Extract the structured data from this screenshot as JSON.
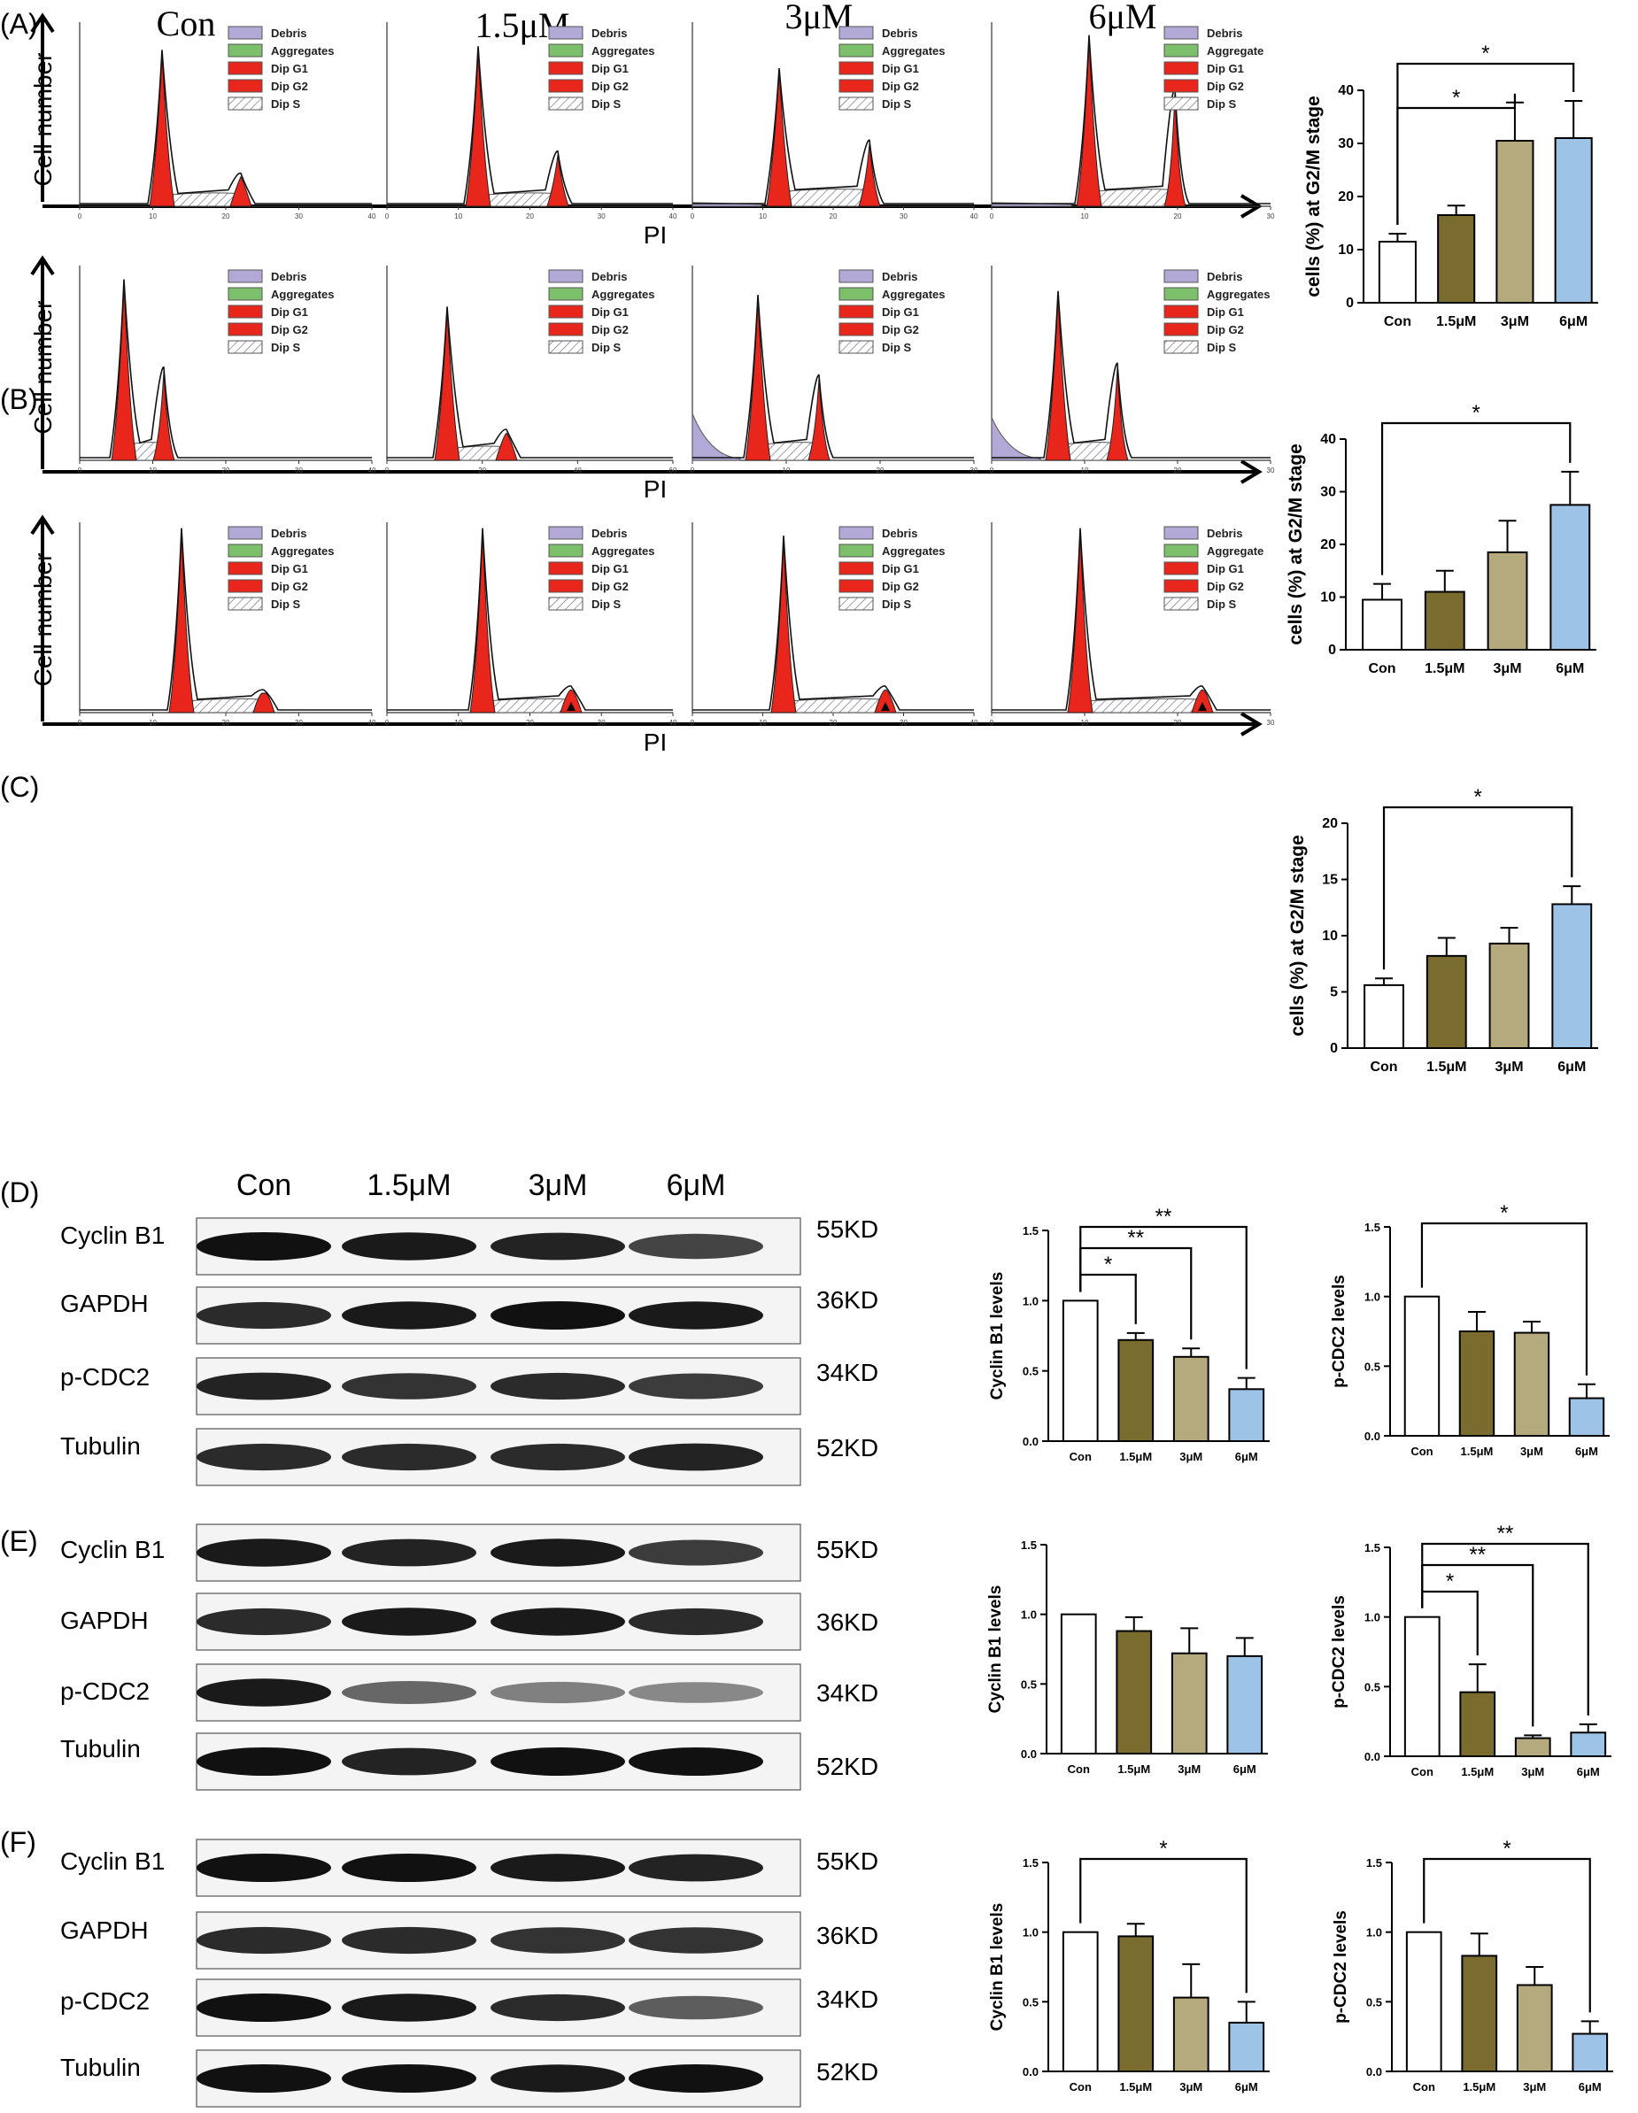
{
  "panels": {
    "A": {
      "label": "(A)"
    },
    "B": {
      "label": "(B)"
    },
    "C": {
      "label": "(C)"
    },
    "D": {
      "label": "(D)"
    },
    "E": {
      "label": "(E)"
    },
    "F": {
      "label": "(F)"
    }
  },
  "flow": {
    "y_axis_label": "Cell number",
    "x_axis_label": "PI",
    "column_titles": [
      "Con",
      "1.5μM",
      "3μM",
      "6μM"
    ],
    "legend": [
      "Debris",
      "Aggregates",
      "Dip G1",
      "Dip G2",
      "Dip S"
    ],
    "legend_cut": "Aggregate",
    "ticks_40": [
      "0",
      "10",
      "20",
      "30",
      "40"
    ],
    "ticks_60": [
      "0",
      "20",
      "40",
      "60"
    ],
    "ticks_30": [
      "0",
      "10",
      "20",
      "30"
    ],
    "colors": {
      "debris": "#b3a9d6",
      "aggregates": "#7dc06b",
      "g1": "#e8261c",
      "g2": "#e8261c",
      "s": "#ffffff"
    }
  },
  "blots": {
    "lanes": [
      "Con",
      "1.5μM",
      "3μM",
      "6μM"
    ],
    "rows": [
      {
        "protein": "Cyclin B1",
        "size": "55KD"
      },
      {
        "protein": "GAPDH",
        "size": "36KD"
      },
      {
        "protein": "p-CDC2",
        "size": "34KD"
      },
      {
        "protein": "Tubulin",
        "size": "52KD"
      }
    ]
  },
  "chart_data": [
    {
      "id": "A",
      "type": "bar",
      "ylabel": "cells (%) at G2/M stage",
      "categories": [
        "Con",
        "1.5μM",
        "3μM",
        "6μM"
      ],
      "values": [
        11.5,
        16.5,
        30.5,
        31
      ],
      "errors": [
        1.5,
        1.8,
        7.2,
        7
      ],
      "ylim": [
        0,
        40
      ],
      "yticks": [
        "0",
        "10",
        "20",
        "30",
        "40"
      ],
      "significance": [
        {
          "from": 0,
          "to": 2,
          "label": "*"
        },
        {
          "from": 0,
          "to": 3,
          "label": "*"
        }
      ]
    },
    {
      "id": "B",
      "type": "bar",
      "ylabel": "cells (%) at G2/M stage",
      "categories": [
        "Con",
        "1.5μM",
        "3μM",
        "6μM"
      ],
      "values": [
        9.5,
        11,
        18.5,
        27.5
      ],
      "errors": [
        3,
        4,
        6,
        6.3
      ],
      "ylim": [
        0,
        40
      ],
      "yticks": [
        "0",
        "10",
        "20",
        "30",
        "40"
      ],
      "significance": [
        {
          "from": 0,
          "to": 3,
          "label": "*"
        }
      ]
    },
    {
      "id": "C",
      "type": "bar",
      "ylabel": "cells (%) at G2/M stage",
      "categories": [
        "Con",
        "1.5μM",
        "3μM",
        "6μM"
      ],
      "values": [
        5.6,
        8.2,
        9.3,
        12.8
      ],
      "errors": [
        0.6,
        1.6,
        1.4,
        1.6
      ],
      "ylim": [
        0,
        20
      ],
      "yticks": [
        "0",
        "5",
        "10",
        "15",
        "20"
      ],
      "significance": [
        {
          "from": 0,
          "to": 3,
          "label": "*"
        }
      ]
    },
    {
      "id": "D1",
      "type": "bar",
      "ylabel": "Cyclin B1 levels",
      "categories": [
        "Con",
        "1.5μM",
        "3μM",
        "6μM"
      ],
      "values": [
        1.0,
        0.72,
        0.6,
        0.37
      ],
      "errors": [
        0,
        0.05,
        0.06,
        0.08
      ],
      "ylim": [
        0,
        1.5
      ],
      "yticks": [
        "0.0",
        "0.5",
        "1.0",
        "1.5"
      ],
      "significance": [
        {
          "from": 0,
          "to": 1,
          "label": "*"
        },
        {
          "from": 0,
          "to": 2,
          "label": "**"
        },
        {
          "from": 0,
          "to": 3,
          "label": "**"
        }
      ]
    },
    {
      "id": "D2",
      "type": "bar",
      "ylabel": "p-CDC2 levels",
      "categories": [
        "Con",
        "1.5μM",
        "3μM",
        "6μM"
      ],
      "values": [
        1.0,
        0.75,
        0.74,
        0.27
      ],
      "errors": [
        0,
        0.14,
        0.08,
        0.1
      ],
      "ylim": [
        0,
        1.5
      ],
      "yticks": [
        "0.0",
        "0.5",
        "1.0",
        "1.5"
      ],
      "significance": [
        {
          "from": 0,
          "to": 3,
          "label": "*"
        }
      ]
    },
    {
      "id": "E1",
      "type": "bar",
      "ylabel": "Cyclin B1 levels",
      "categories": [
        "Con",
        "1.5μM",
        "3μM",
        "6μM"
      ],
      "values": [
        1.0,
        0.88,
        0.72,
        0.7
      ],
      "errors": [
        0,
        0.1,
        0.18,
        0.13
      ],
      "ylim": [
        0,
        1.5
      ],
      "yticks": [
        "0.0",
        "0.5",
        "1.0",
        "1.5"
      ],
      "significance": []
    },
    {
      "id": "E2",
      "type": "bar",
      "ylabel": "p-CDC2 levels",
      "categories": [
        "Con",
        "1.5μM",
        "3μM",
        "6μM"
      ],
      "values": [
        1.0,
        0.46,
        0.13,
        0.17
      ],
      "errors": [
        0,
        0.2,
        0.02,
        0.06
      ],
      "ylim": [
        0,
        1.5
      ],
      "yticks": [
        "0.0",
        "0.5",
        "1.0",
        "1.5"
      ],
      "significance": [
        {
          "from": 0,
          "to": 1,
          "label": "*"
        },
        {
          "from": 0,
          "to": 2,
          "label": "**"
        },
        {
          "from": 0,
          "to": 3,
          "label": "**"
        }
      ]
    },
    {
      "id": "F1",
      "type": "bar",
      "ylabel": "Cyclin B1 levels",
      "categories": [
        "Con",
        "1.5μM",
        "3μM",
        "6μM"
      ],
      "values": [
        1.0,
        0.97,
        0.53,
        0.35
      ],
      "errors": [
        0,
        0.09,
        0.24,
        0.15
      ],
      "ylim": [
        0,
        1.5
      ],
      "yticks": [
        "0.0",
        "0.5",
        "1.0",
        "1.5"
      ],
      "significance": [
        {
          "from": 0,
          "to": 3,
          "label": "*"
        }
      ]
    },
    {
      "id": "F2",
      "type": "bar",
      "ylabel": "p-CDC2 levels",
      "categories": [
        "Con",
        "1.5μM",
        "3μM",
        "6μM"
      ],
      "values": [
        1.0,
        0.83,
        0.62,
        0.27
      ],
      "errors": [
        0,
        0.16,
        0.13,
        0.09
      ],
      "ylim": [
        0,
        1.5
      ],
      "yticks": [
        "0.0",
        "0.5",
        "1.0",
        "1.5"
      ],
      "significance": [
        {
          "from": 0,
          "to": 3,
          "label": "*"
        }
      ]
    }
  ]
}
